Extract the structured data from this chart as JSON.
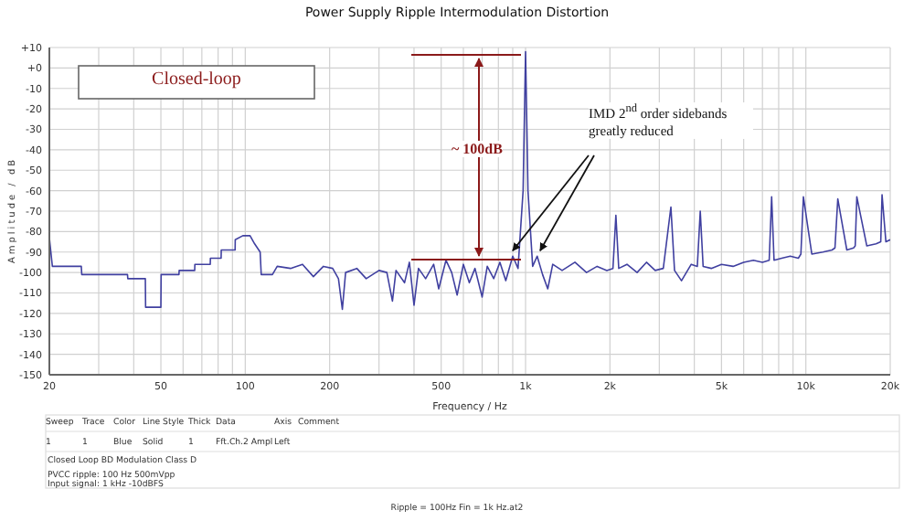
{
  "chart_data": {
    "type": "line",
    "title": "Power Supply Ripple Intermodulation Distortion",
    "xlabel": "Frequency / Hz",
    "ylabel": "Amplitude / dB",
    "log": "x",
    "grid": true,
    "marker": "none",
    "line_style": "solid",
    "xlim": [
      20,
      20000
    ],
    "xticks": [
      20,
      {
        "value": 30,
        "label": null
      },
      {
        "value": 40,
        "label": null
      },
      50,
      {
        "value": 60,
        "label": null
      },
      {
        "value": 70,
        "label": null
      },
      {
        "value": 80,
        "label": null
      },
      {
        "value": 90,
        "label": null
      },
      100,
      200,
      {
        "value": 300,
        "label": null
      },
      {
        "value": 400,
        "label": null
      },
      500,
      {
        "value": 600,
        "label": null
      },
      {
        "value": 700,
        "label": null
      },
      {
        "value": 800,
        "label": null
      },
      {
        "value": 900,
        "label": null
      },
      {
        "value": 1000,
        "label": "1k"
      },
      {
        "value": 2000,
        "label": "2k"
      },
      {
        "value": 3000,
        "label": null
      },
      {
        "value": 4000,
        "label": null
      },
      {
        "value": 5000,
        "label": "5k"
      },
      {
        "value": 6000,
        "label": null
      },
      {
        "value": 7000,
        "label": null
      },
      {
        "value": 8000,
        "label": null
      },
      {
        "value": 9000,
        "label": null
      },
      {
        "value": 10000,
        "label": "10k"
      },
      {
        "value": 20000,
        "label": "20k"
      }
    ],
    "ylim": [
      -150,
      10
    ],
    "yticks": [
      {
        "value": 10,
        "label": "+10"
      },
      {
        "value": 0,
        "label": "+0"
      },
      -10,
      -20,
      -30,
      -40,
      -50,
      -60,
      -70,
      -80,
      -90,
      -100,
      -110,
      -120,
      -130,
      -140,
      -150
    ],
    "annotations": [
      "Closed-loop",
      "~ 100dB",
      {
        "text": "IMD 2$^{nd}$ order sidebands greatly reduced",
        "x": 900,
        "y": -92
      },
      "Sweep",
      "Trace",
      "Color",
      "Line Style",
      "Thick",
      "Data",
      "Axis",
      "Comment",
      "1",
      "1",
      "Blue",
      "Solid",
      "1",
      "Fft.Ch.2 Ampl",
      "Left",
      "Closed Loop BD Modulation Class D",
      "PVCC ripple: 100 Hz 500mVpp",
      "Input signal: 1 kHz  -10dBFS",
      "Ripple = 100Hz Fin = 1k Hz.at2"
    ],
    "series": [
      {
        "color": "#4040a0",
        "x": [
          20,
          20.5,
          26,
          26.1,
          38,
          38.1,
          44,
          44.1,
          50,
          50.1,
          58,
          58.1,
          66,
          66.1,
          75,
          75.1,
          82,
          82.1,
          92,
          92.1,
          98,
          104,
          108,
          113,
          114,
          125,
          130,
          145,
          160,
          175,
          190,
          205,
          215,
          222,
          228,
          250,
          270,
          300,
          320,
          335,
          345,
          370,
          385,
          400,
          415,
          440,
          470,
          490,
          520,
          545,
          570,
          600,
          630,
          660,
          700,
          730,
          770,
          810,
          850,
          900,
          940,
          980,
          1000,
          1020,
          1060,
          1100,
          1150,
          1200,
          1250,
          1350,
          1500,
          1650,
          1800,
          1950,
          2050,
          2100,
          2150,
          2300,
          2500,
          2700,
          2900,
          3100,
          3300,
          3400,
          3600,
          3900,
          4100,
          4200,
          4300,
          4600,
          5000,
          5500,
          6000,
          6500,
          7000,
          7400,
          7550,
          7700,
          8200,
          8800,
          9400,
          9600,
          9800,
          10500,
          11500,
          12400,
          12700,
          13000,
          14000,
          14800,
          15000,
          15200,
          16500,
          17800,
          18500,
          18700,
          19300,
          20000
        ],
        "values": [
          -83,
          -97,
          -97,
          -101,
          -101,
          -103,
          -103,
          -117,
          -117,
          -101,
          -101,
          -99,
          -99,
          -96,
          -96,
          -93,
          -93,
          -89,
          -89,
          -84,
          -82,
          -82,
          -86,
          -90,
          -101,
          -101,
          -97,
          -98,
          -96,
          -102,
          -97,
          -98,
          -103,
          -118,
          -100,
          -98,
          -103,
          -99,
          -100,
          -114,
          -99,
          -105,
          -95,
          -116,
          -98,
          -103,
          -96,
          -108,
          -94,
          -100,
          -111,
          -96,
          -105,
          -98,
          -112,
          -97,
          -103,
          -95,
          -104,
          -92,
          -98,
          -60,
          8,
          -60,
          -97,
          -92,
          -101,
          -108,
          -96,
          -99,
          -95,
          -100,
          -97,
          -99,
          -98,
          -72,
          -98,
          -96,
          -100,
          -95,
          -99,
          -98,
          -68,
          -99,
          -104,
          -96,
          -97,
          -70,
          -97,
          -98,
          -96,
          -97,
          -95,
          -94,
          -95,
          -94,
          -63,
          -94,
          -93,
          -92,
          -93,
          -91,
          -63,
          -91,
          -90,
          -89,
          -88,
          -64,
          -89,
          -88,
          -87,
          -63,
          -87,
          -86,
          -85,
          -62,
          -85,
          -84
        ]
      }
    ]
  }
}
